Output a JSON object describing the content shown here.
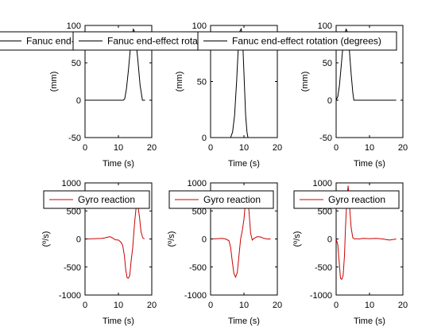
{
  "figure": {
    "background": "#ffffff"
  },
  "chart_data": [
    {
      "type": "line",
      "title": "",
      "xlabel": "Time (s)",
      "ylabel": "(mm)",
      "xlim": [
        0,
        20
      ],
      "ylim": [
        -50,
        100
      ],
      "xticks": [
        "0",
        "10",
        "20"
      ],
      "yticks": [
        "-50",
        "0",
        "50",
        "100"
      ],
      "grid": false,
      "legend_position": "top",
      "series": [
        {
          "name": "Fanuc end-effect rotation (degrees)",
          "color": "#000000",
          "x": [
            0,
            11.5,
            11.9,
            12.4,
            13.0,
            13.6,
            14.0,
            14.5,
            15.0,
            15.8,
            16.5,
            17.2,
            18.0
          ],
          "y": [
            0,
            0,
            2,
            15,
            40,
            70,
            85,
            95,
            90,
            55,
            20,
            0,
            0
          ]
        }
      ]
    },
    {
      "type": "line",
      "title": "",
      "xlabel": "Time (s)",
      "ylabel": "(mm)",
      "xlim": [
        0,
        20
      ],
      "ylim": [
        0,
        100
      ],
      "xticks": [
        "0",
        "10",
        "20"
      ],
      "yticks": [
        "0",
        "50",
        "100"
      ],
      "grid": false,
      "legend_position": "top",
      "series": [
        {
          "name": "Fanuc end-effect rotation (degrees)",
          "color": "#000000",
          "x": [
            6.0,
            6.6,
            7.2,
            7.8,
            8.3,
            8.8,
            9.2,
            9.7,
            10.1,
            10.5,
            10.9,
            11.2
          ],
          "y": [
            0,
            5,
            20,
            50,
            80,
            95,
            97,
            80,
            50,
            20,
            5,
            0
          ]
        }
      ]
    },
    {
      "type": "line",
      "title": "",
      "xlabel": "Time (s)",
      "ylabel": "(mm)",
      "xlim": [
        0,
        20
      ],
      "ylim": [
        -50,
        100
      ],
      "xticks": [
        "0",
        "10",
        "20"
      ],
      "yticks": [
        "-50",
        "0",
        "50",
        "100"
      ],
      "grid": false,
      "legend_position": "top",
      "series": [
        {
          "name": "Fanuc end-effect rotation (degrees)",
          "color": "#000000",
          "x": [
            0,
            0.5,
            1.0,
            1.5,
            2.0,
            2.5,
            3.0,
            3.5,
            4.0,
            4.5,
            5.0,
            5.3,
            5.6,
            18.0
          ],
          "y": [
            0,
            5,
            20,
            45,
            70,
            88,
            95,
            90,
            65,
            35,
            10,
            0,
            0,
            0
          ]
        }
      ]
    },
    {
      "type": "line",
      "title": "",
      "xlabel": "Time (s)",
      "ylabel": "(º/s)",
      "xlim": [
        0,
        20
      ],
      "ylim": [
        -1000,
        1000
      ],
      "xticks": [
        "0",
        "10",
        "20"
      ],
      "yticks": [
        "-1000",
        "-500",
        "0",
        "500",
        "1000"
      ],
      "grid": false,
      "legend_position": "top",
      "series": [
        {
          "name": "Gyro reaction",
          "color": "#cc0000",
          "x": [
            0,
            3,
            5,
            6,
            7,
            7.5,
            8.5,
            9,
            10,
            10.8,
            11.3,
            11.8,
            12.2,
            12.6,
            13.0,
            13.4,
            13.8,
            14.3,
            14.8,
            15.3,
            15.8,
            16.3,
            16.8,
            17.3,
            17.8
          ],
          "y": [
            0,
            5,
            10,
            20,
            35,
            40,
            10,
            -15,
            -20,
            -60,
            -120,
            -300,
            -550,
            -690,
            -700,
            -650,
            -400,
            -150,
            250,
            560,
            620,
            400,
            120,
            20,
            0
          ]
        }
      ]
    },
    {
      "type": "line",
      "title": "",
      "xlabel": "Time (s)",
      "ylabel": "(º/s)",
      "xlim": [
        0,
        20
      ],
      "ylim": [
        -1000,
        1000
      ],
      "xticks": [
        "0",
        "10",
        "20"
      ],
      "yticks": [
        "-1000",
        "-500",
        "0",
        "500",
        "1000"
      ],
      "grid": false,
      "legend_position": "top",
      "series": [
        {
          "name": "Gyro reaction",
          "color": "#cc0000",
          "x": [
            0,
            2,
            3.5,
            4.5,
            5.5,
            6.0,
            6.5,
            7.0,
            7.5,
            8.0,
            8.5,
            9.0,
            9.5,
            10.0,
            10.5,
            11.0,
            11.5,
            12.0,
            12.5,
            13.0,
            14.0,
            15.0,
            16.0,
            17.0,
            18.0
          ],
          "y": [
            0,
            5,
            10,
            0,
            -30,
            -150,
            -400,
            -620,
            -680,
            -600,
            -300,
            0,
            150,
            350,
            700,
            820,
            500,
            100,
            -20,
            10,
            40,
            35,
            10,
            0,
            0
          ]
        }
      ]
    },
    {
      "type": "line",
      "title": "",
      "xlabel": "Time (s)",
      "ylabel": "(º/s)",
      "xlim": [
        0,
        20
      ],
      "ylim": [
        -1000,
        1000
      ],
      "xticks": [
        "0",
        "10",
        "20"
      ],
      "yticks": [
        "-1000",
        "-500",
        "0",
        "500",
        "1000"
      ],
      "grid": false,
      "legend_position": "top",
      "series": [
        {
          "name": "Gyro reaction",
          "color": "#cc0000",
          "x": [
            0,
            0.5,
            0.9,
            1.3,
            1.7,
            2.1,
            2.5,
            2.8,
            3.2,
            3.6,
            4.0,
            4.5,
            5.0,
            5.5,
            6.0,
            7.0,
            8.0,
            10.0,
            12.0,
            14.0,
            15.0,
            16.0,
            17.0,
            18.0
          ],
          "y": [
            0,
            -100,
            -400,
            -700,
            -720,
            -650,
            -300,
            200,
            700,
            950,
            600,
            200,
            20,
            0,
            5,
            0,
            10,
            5,
            10,
            0,
            -10,
            -20,
            -10,
            0
          ]
        }
      ]
    }
  ]
}
